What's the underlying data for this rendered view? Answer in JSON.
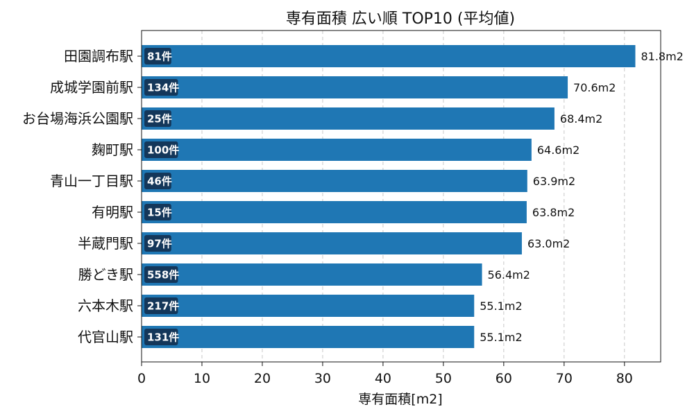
{
  "chart_data": {
    "type": "bar",
    "orientation": "horizontal",
    "title": "専有面積 広い順 TOP10 (平均値)",
    "xlabel": "専有面積[m2]",
    "ylabel": "",
    "xlim": [
      0,
      86
    ],
    "xticks": [
      0,
      10,
      20,
      30,
      40,
      50,
      60,
      70,
      80
    ],
    "grid": "x-dashed",
    "bar_color": "#1f77b4",
    "count_badge_color": "#14375a",
    "value_suffix": "m2",
    "categories": [
      "田園調布駅",
      "成城学園前駅",
      "お台場海浜公園駅",
      "麹町駅",
      "青山一丁目駅",
      "有明駅",
      "半蔵門駅",
      "勝どき駅",
      "六本木駅",
      "代官山駅"
    ],
    "values": [
      81.8,
      70.6,
      68.4,
      64.6,
      63.9,
      63.8,
      63.0,
      56.4,
      55.1,
      55.1
    ],
    "value_labels": [
      "81.8m2",
      "70.6m2",
      "68.4m2",
      "64.6m2",
      "63.9m2",
      "63.8m2",
      "63.0m2",
      "56.4m2",
      "55.1m2",
      "55.1m2"
    ],
    "counts": [
      "81件",
      "134件",
      "25件",
      "100件",
      "46件",
      "15件",
      "97件",
      "558件",
      "217件",
      "131件"
    ]
  }
}
